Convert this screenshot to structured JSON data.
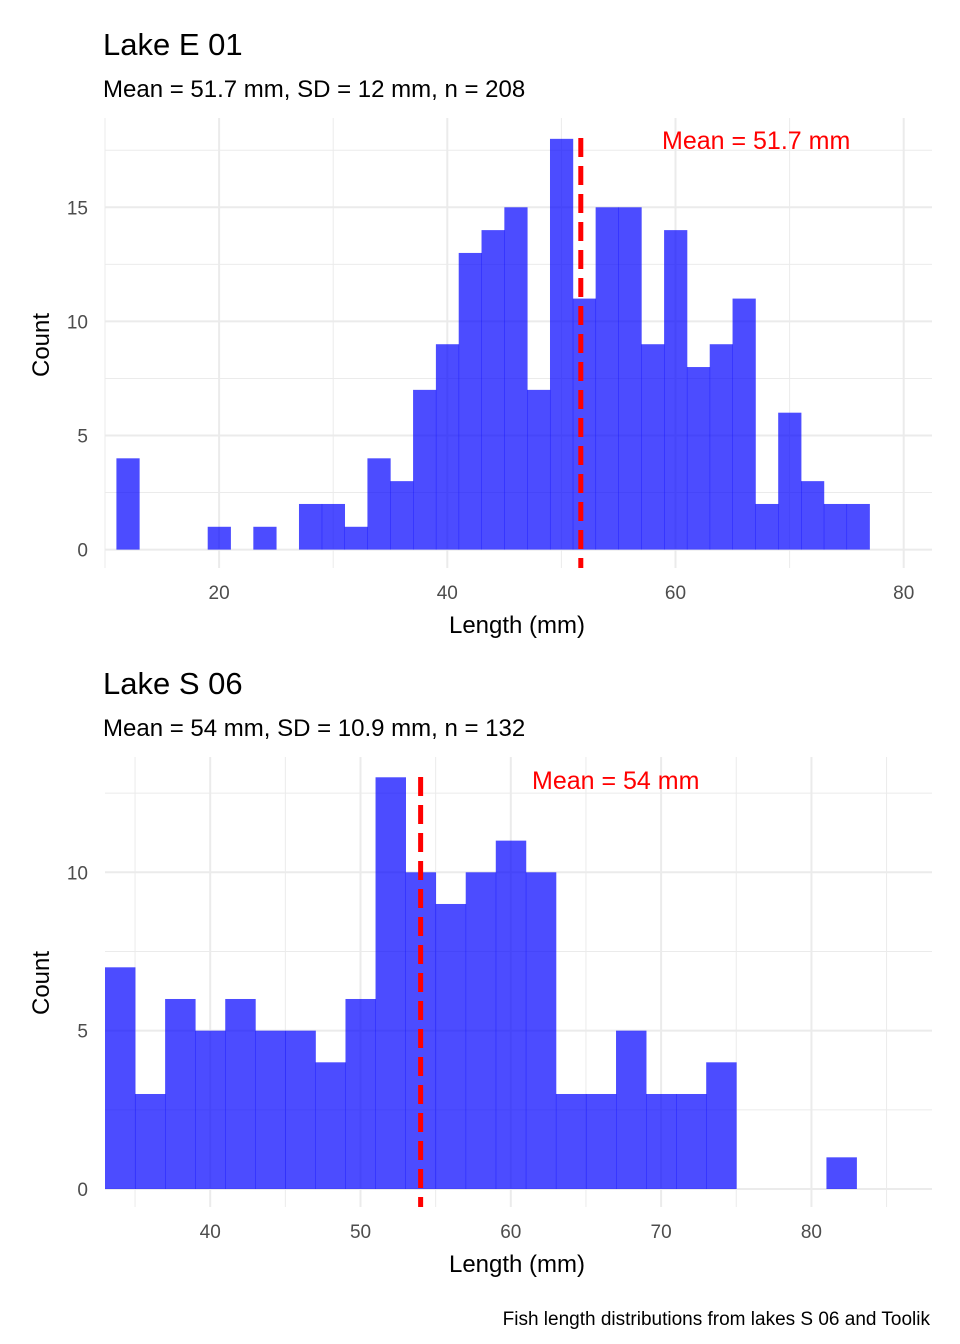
{
  "caption": "Fish length distributions from lakes S 06 and Toolik",
  "colors": {
    "bars": "#0000FF",
    "mean_line": "#FF0000",
    "grid": "#EBEBEB"
  },
  "chart_data": [
    {
      "type": "bar",
      "title": "Lake E 01",
      "subtitle": "Mean = 51.7 mm, SD = 12 mm, n = 208",
      "xlabel": "Length (mm)",
      "ylabel": "Count",
      "xlim": [
        10,
        80
      ],
      "ylim": [
        0,
        18
      ],
      "xticks": [
        20,
        40,
        60,
        80
      ],
      "yticks": [
        0,
        5,
        10,
        15
      ],
      "bin_width": 2,
      "bin_starts": [
        11,
        13,
        15,
        17,
        19,
        21,
        23,
        25,
        27,
        29,
        31,
        33,
        35,
        37,
        39,
        41,
        43,
        45,
        47,
        49,
        51,
        53,
        55,
        57,
        59,
        61,
        63,
        65,
        67,
        69,
        71,
        73,
        75
      ],
      "counts": [
        4,
        0,
        0,
        0,
        1,
        0,
        1,
        0,
        2,
        2,
        1,
        4,
        3,
        7,
        9,
        13,
        14,
        15,
        7,
        18,
        11,
        15,
        15,
        9,
        14,
        8,
        9,
        11,
        2,
        6,
        3,
        2,
        2
      ],
      "mean": 51.7,
      "mean_label": "Mean = 51.7 mm",
      "grid": true,
      "legend": "none"
    },
    {
      "type": "bar",
      "title": "Lake S 06",
      "subtitle": "Mean = 54 mm, SD = 10.9 mm, n = 132",
      "xlabel": "Length (mm)",
      "ylabel": "Count",
      "xlim": [
        33,
        85
      ],
      "ylim": [
        0,
        13
      ],
      "xticks": [
        40,
        50,
        60,
        70,
        80
      ],
      "yticks": [
        0,
        5,
        10
      ],
      "bin_width": 2,
      "bin_starts": [
        33,
        35,
        37,
        39,
        41,
        43,
        45,
        47,
        49,
        51,
        53,
        55,
        57,
        59,
        61,
        63,
        65,
        67,
        69,
        71,
        73,
        75,
        77,
        79,
        81
      ],
      "counts": [
        7,
        3,
        6,
        5,
        6,
        5,
        5,
        4,
        6,
        13,
        10,
        9,
        10,
        11,
        10,
        3,
        3,
        5,
        3,
        3,
        4,
        0,
        0,
        0,
        1
      ],
      "mean": 54,
      "mean_label": "Mean = 54 mm",
      "grid": true,
      "legend": "none"
    }
  ]
}
